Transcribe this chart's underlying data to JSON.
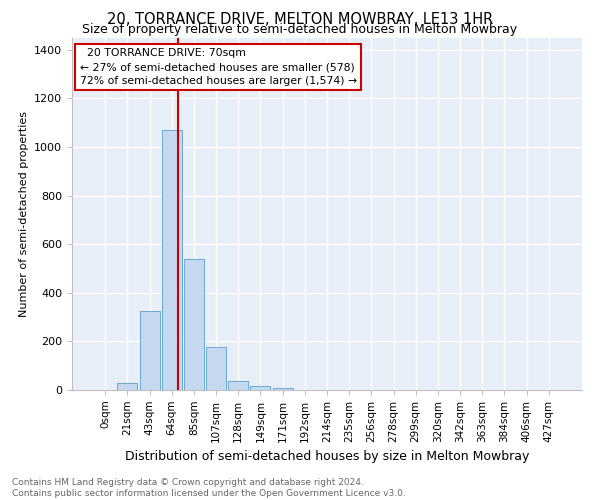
{
  "title": "20, TORRANCE DRIVE, MELTON MOWBRAY, LE13 1HR",
  "subtitle": "Size of property relative to semi-detached houses in Melton Mowbray",
  "xlabel": "Distribution of semi-detached houses by size in Melton Mowbray",
  "ylabel": "Number of semi-detached properties",
  "categories": [
    "0sqm",
    "21sqm",
    "43sqm",
    "64sqm",
    "85sqm",
    "107sqm",
    "128sqm",
    "149sqm",
    "171sqm",
    "192sqm",
    "214sqm",
    "235sqm",
    "256sqm",
    "278sqm",
    "299sqm",
    "320sqm",
    "342sqm",
    "363sqm",
    "384sqm",
    "406sqm",
    "427sqm"
  ],
  "bar_values": [
    0,
    28,
    325,
    1068,
    540,
    178,
    38,
    18,
    10,
    0,
    0,
    0,
    0,
    0,
    0,
    0,
    0,
    0,
    0,
    0,
    0
  ],
  "bar_color": "#c5d8f0",
  "bar_edge_color": "#6aaad4",
  "property_sqm": 70,
  "bin_starts": [
    0,
    21,
    43,
    64,
    85,
    107,
    128,
    149,
    171,
    192,
    214,
    235,
    256,
    278,
    299,
    320,
    342,
    363,
    384,
    406,
    427
  ],
  "property_line_label": "20 TORRANCE DRIVE: 70sqm",
  "smaller_pct": 27,
  "smaller_count": 578,
  "larger_pct": 72,
  "larger_count": 1574,
  "annotation_box_color": "#ffffff",
  "annotation_box_edge_color": "#cc0000",
  "vertical_line_color": "#cc0000",
  "ylim_max": 1450,
  "background_color": "#e8eef8",
  "grid_color": "#ffffff",
  "figure_bg": "#ffffff",
  "footer_text": "Contains HM Land Registry data © Crown copyright and database right 2024.\nContains public sector information licensed under the Open Government Licence v3.0.",
  "title_fontsize": 10.5,
  "subtitle_fontsize": 9,
  "xlabel_fontsize": 9,
  "ylabel_fontsize": 8,
  "tick_fontsize": 7.5,
  "footer_fontsize": 6.5
}
